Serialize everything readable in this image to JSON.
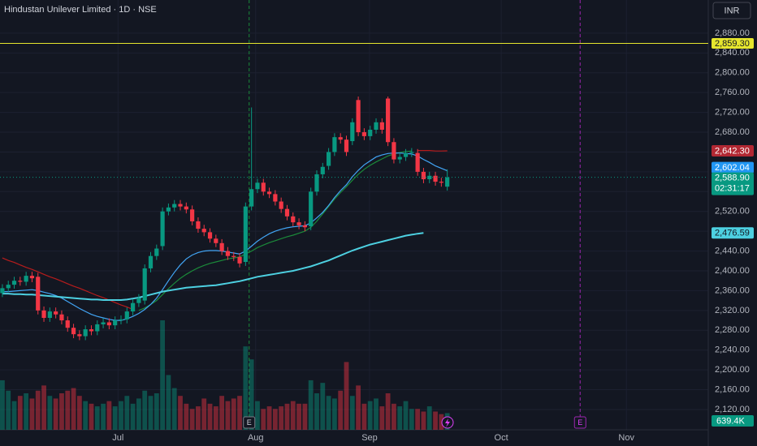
{
  "chart_data": {
    "type": "candlestick",
    "title": "Hindustan Unilever Limited · 1D · NSE",
    "currency": "INR",
    "xlim": [
      -0.4,
      119
    ],
    "xticks": [
      {
        "value": 19.5,
        "label": "Jul"
      },
      {
        "value": 42.7,
        "label": "Aug"
      },
      {
        "value": 61.9,
        "label": "Sep"
      },
      {
        "value": 84.1,
        "label": "Oct"
      },
      {
        "value": 105.2,
        "label": "Nov"
      }
    ],
    "ylim": [
      2079,
      2947
    ],
    "yticks": [
      {
        "value": 2120,
        "label": "2,120.00"
      },
      {
        "value": 2160,
        "label": "2,160.00"
      },
      {
        "value": 2200,
        "label": "2,200.00"
      },
      {
        "value": 2240,
        "label": "2,240.00"
      },
      {
        "value": 2280,
        "label": "2,280.00"
      },
      {
        "value": 2320,
        "label": "2,320.00"
      },
      {
        "value": 2360,
        "label": "2,360.00"
      },
      {
        "value": 2400,
        "label": "2,400.00"
      },
      {
        "value": 2440,
        "label": "2,440.00"
      },
      {
        "value": 2480,
        "label": "2,480.00"
      },
      {
        "value": 2520,
        "label": "2,520.00"
      },
      {
        "value": 2560,
        "label": "2,560.00"
      },
      {
        "value": 2600,
        "label": "2,600.00"
      },
      {
        "value": 2640,
        "label": "2,640.00"
      },
      {
        "value": 2680,
        "label": "2,680.00"
      },
      {
        "value": 2720,
        "label": "2,720.00"
      },
      {
        "value": 2760,
        "label": "2,760.00"
      },
      {
        "value": 2800,
        "label": "2,800.00"
      },
      {
        "value": 2840,
        "label": "2,840.00"
      },
      {
        "value": 2880,
        "label": "2,880.00"
      }
    ],
    "grid": true,
    "up_color": "#089981",
    "down_color": "#f23645",
    "open": [
      2355,
      2365,
      2372,
      2380,
      2378,
      2390,
      2388,
      2320,
      2305,
      2318,
      2312,
      2300,
      2285,
      2272,
      2268,
      2282,
      2278,
      2292,
      2296,
      2290,
      2300,
      2302,
      2318,
      2335,
      2340,
      2405,
      2430,
      2450,
      2520,
      2528,
      2535,
      2530,
      2524,
      2500,
      2485,
      2478,
      2465,
      2456,
      2440,
      2430,
      2428,
      2418,
      2530,
      2565,
      2578,
      2560,
      2555,
      2540,
      2525,
      2510,
      2498,
      2492,
      2490,
      2560,
      2595,
      2612,
      2640,
      2670,
      2665,
      2662,
      2745,
      2680,
      2672,
      2685,
      2700,
      2748,
      2660,
      2625,
      2630,
      2638,
      2638,
      2600,
      2585,
      2592,
      2580,
      2570
    ],
    "high": [
      2373,
      2380,
      2388,
      2388,
      2398,
      2398,
      2396,
      2328,
      2326,
      2326,
      2320,
      2308,
      2293,
      2280,
      2290,
      2290,
      2300,
      2304,
      2304,
      2308,
      2310,
      2326,
      2343,
      2353,
      2413,
      2438,
      2453,
      2528,
      2536,
      2543,
      2543,
      2538,
      2532,
      2508,
      2493,
      2486,
      2473,
      2464,
      2448,
      2438,
      2436,
      2538,
      2730,
      2586,
      2586,
      2568,
      2563,
      2548,
      2533,
      2518,
      2506,
      2500,
      2568,
      2603,
      2618,
      2648,
      2678,
      2678,
      2673,
      2708,
      2752,
      2688,
      2693,
      2708,
      2708,
      2752,
      2668,
      2638,
      2646,
      2648,
      2646,
      2608,
      2600,
      2600,
      2588,
      2605
    ],
    "low": [
      2347,
      2357,
      2364,
      2370,
      2370,
      2377,
      2312,
      2297,
      2297,
      2304,
      2292,
      2277,
      2264,
      2260,
      2260,
      2270,
      2270,
      2284,
      2282,
      2282,
      2292,
      2294,
      2310,
      2327,
      2332,
      2397,
      2422,
      2442,
      2512,
      2520,
      2522,
      2516,
      2492,
      2477,
      2470,
      2457,
      2448,
      2432,
      2422,
      2420,
      2407,
      2410,
      2522,
      2557,
      2552,
      2547,
      2532,
      2517,
      2502,
      2490,
      2484,
      2480,
      2482,
      2552,
      2587,
      2604,
      2632,
      2657,
      2632,
      2654,
      2672,
      2664,
      2664,
      2677,
      2677,
      2652,
      2617,
      2617,
      2622,
      2630,
      2592,
      2577,
      2577,
      2572,
      2570,
      2562
    ],
    "close": [
      2365,
      2372,
      2380,
      2378,
      2390,
      2385,
      2320,
      2305,
      2318,
      2312,
      2300,
      2285,
      2272,
      2268,
      2282,
      2278,
      2292,
      2296,
      2290,
      2300,
      2302,
      2318,
      2335,
      2345,
      2405,
      2430,
      2445,
      2520,
      2528,
      2535,
      2530,
      2524,
      2500,
      2485,
      2478,
      2465,
      2456,
      2440,
      2430,
      2428,
      2415,
      2530,
      2565,
      2578,
      2560,
      2555,
      2540,
      2525,
      2510,
      2498,
      2492,
      2488,
      2560,
      2595,
      2610,
      2640,
      2670,
      2665,
      2640,
      2700,
      2680,
      2672,
      2685,
      2700,
      2685,
      2660,
      2625,
      2630,
      2638,
      2640,
      2600,
      2585,
      2592,
      2580,
      2578,
      2588.9
    ],
    "close_last_label": "2,588.90",
    "countdown": "02:31:17",
    "volume": {
      "values": [
        1900000,
        1500000,
        1100000,
        1300000,
        1400000,
        1200000,
        1500000,
        1700000,
        1300000,
        1200000,
        1400000,
        1500000,
        1600000,
        1300000,
        1100000,
        1000000,
        900000,
        1000000,
        1100000,
        900000,
        1100000,
        1300000,
        1000000,
        1200000,
        1500000,
        1300000,
        1400000,
        4200000,
        2100000,
        1600000,
        1300000,
        1000000,
        800000,
        900000,
        1200000,
        1000000,
        900000,
        1300000,
        1100000,
        1200000,
        1300000,
        3200000,
        2700000,
        1100000,
        800000,
        900000,
        800000,
        900000,
        1000000,
        1100000,
        1000000,
        1000000,
        1900000,
        1400000,
        1800000,
        1300000,
        1200000,
        1500000,
        2600000,
        1300000,
        1700000,
        1000000,
        1100000,
        1200000,
        900000,
        1400000,
        1000000,
        900000,
        1100000,
        800000,
        800000,
        700000,
        900000,
        700000,
        600000,
        639400
      ],
      "last_label": "639.4K"
    },
    "moving_averages": [
      {
        "color": "#b71c1c",
        "values": [
          2426,
          2421,
          2417,
          2412,
          2407,
          2403,
          2398,
          2393,
          2388,
          2384,
          2379,
          2374,
          2369,
          2365,
          2360,
          2355,
          2350,
          2346,
          2341,
          2336,
          2331,
          2327,
          2322,
          null,
          null,
          null,
          null,
          null,
          null,
          null,
          null,
          null,
          null,
          null,
          null,
          null,
          null,
          null,
          null,
          null,
          null,
          null,
          null,
          null,
          null,
          null,
          null,
          null,
          null,
          null,
          null,
          null,
          null,
          null,
          null,
          null,
          null,
          null,
          null,
          null,
          null,
          null,
          null,
          null,
          null,
          null,
          null,
          null,
          null,
          null,
          2643,
          2643,
          2643,
          2642,
          2642,
          2642.3
        ],
        "last_label": "2,642.30",
        "tag_color": "#b22833"
      },
      {
        "color": "#1b8a3a",
        "values": [
          null,
          null,
          null,
          null,
          null,
          null,
          null,
          null,
          null,
          null,
          null,
          null,
          null,
          null,
          null,
          null,
          null,
          null,
          null,
          null,
          null,
          null,
          null,
          2320,
          2325,
          2332,
          2340,
          2352,
          2364,
          2375,
          2385,
          2393,
          2400,
          2406,
          2411,
          2415,
          2418,
          2421,
          2424,
          2426,
          2428,
          2434,
          2440,
          2447,
          2452,
          2457,
          2461,
          2465,
          2469,
          2472,
          2476,
          2480,
          2488,
          2500,
          2515,
          2530,
          2545,
          2558,
          2570,
          2583,
          2595,
          2605,
          2613,
          2620,
          2626,
          2632,
          2636,
          2639,
          2641,
          2642,
          null,
          null,
          null,
          null,
          null,
          null
        ]
      },
      {
        "color": "#42a5f5",
        "values": [
          2358,
          2358,
          2359,
          2360,
          2361,
          2362,
          2360,
          2357,
          2354,
          2350,
          2345,
          2338,
          2331,
          2324,
          2318,
          2312,
          2308,
          2305,
          2302,
          2300,
          2300,
          2303,
          2308,
          2314,
          2322,
          2332,
          2345,
          2362,
          2380,
          2397,
          2412,
          2424,
          2432,
          2437,
          2440,
          2441,
          2441,
          2440,
          2438,
          2436,
          2434,
          2440,
          2450,
          2460,
          2468,
          2475,
          2480,
          2484,
          2487,
          2489,
          2490,
          2491,
          2497,
          2507,
          2518,
          2532,
          2548,
          2562,
          2574,
          2590,
          2603,
          2614,
          2622,
          2630,
          2634,
          2637,
          2638,
          2638,
          2637,
          2636,
          2632,
          2625,
          2619,
          2612,
          2607,
          2602.04
        ],
        "last_label": "2,602.04",
        "tag_color": "#2196f3"
      },
      {
        "color": "#4dd0e1",
        "values": [
          2354,
          2354,
          2353,
          2353,
          2352,
          2352,
          2351,
          2350,
          2349,
          2348,
          2347,
          2346,
          2345,
          2344,
          2343,
          2342,
          2342,
          2341,
          2341,
          2341,
          2341,
          2342,
          2344,
          2346,
          2349,
          2352,
          2355,
          2358,
          2360,
          2362,
          2364,
          2366,
          2367,
          2368,
          2369,
          2370,
          2371,
          2373,
          2375,
          2377,
          2379,
          2382,
          2385,
          2388,
          2390,
          2392,
          2394,
          2396,
          2398,
          2400,
          2403,
          2406,
          2409,
          2413,
          2417,
          2421,
          2426,
          2431,
          2436,
          2441,
          2445,
          2449,
          2453,
          2456,
          2459,
          2462,
          2465,
          2468,
          2471,
          2473,
          2475,
          2476.59,
          null,
          null,
          null,
          null
        ],
        "last_label": "2,476.59",
        "tag_color": "#4dd0e1"
      }
    ],
    "horizontal_line": {
      "value": 2859.3,
      "label": "2,859.30",
      "color": "#e6e62e"
    },
    "events": [
      {
        "x": 41.6,
        "label": "E",
        "color": "#1b8a3a"
      },
      {
        "x": 97.4,
        "label": "E",
        "color": "#9c27b0"
      }
    ]
  }
}
